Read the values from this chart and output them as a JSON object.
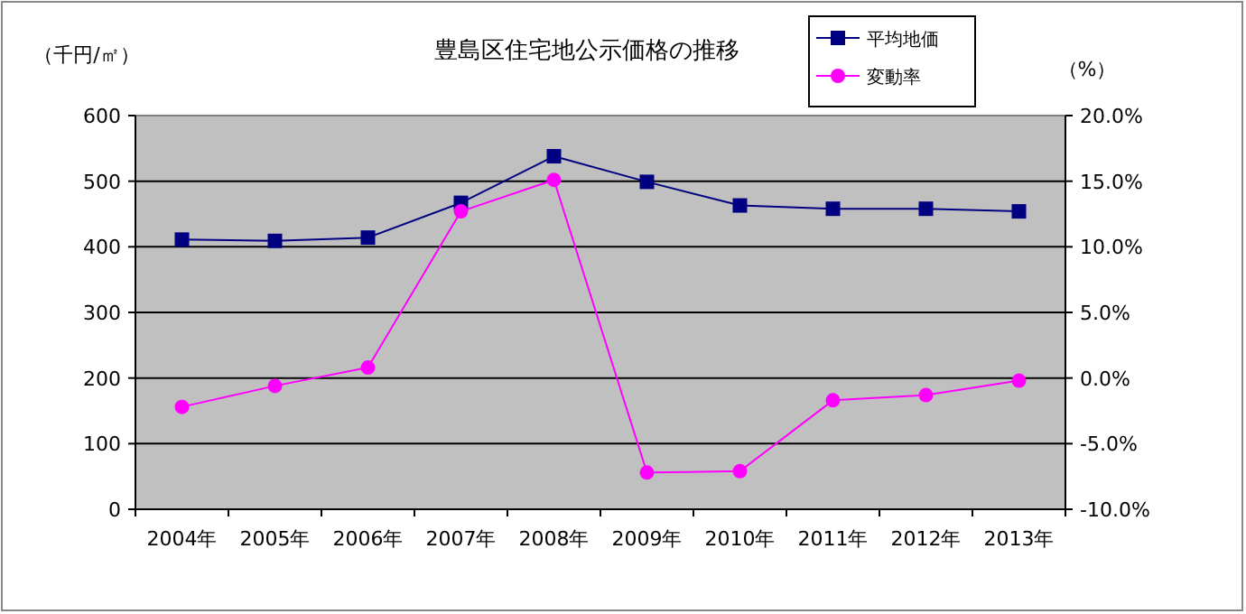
{
  "chart_data": {
    "type": "line",
    "title": "豊島区住宅地公示価格の推移",
    "ylabel": "（千円/㎡）",
    "y2label": "（%）",
    "categories": [
      "2004年",
      "2005年",
      "2006年",
      "2007年",
      "2008年",
      "2009年",
      "2010年",
      "2011年",
      "2012年",
      "2013年"
    ],
    "series": [
      {
        "name": "平均地価",
        "color": "#000080",
        "marker": "square",
        "values": [
          411,
          409,
          414,
          467,
          538,
          499,
          463,
          458,
          458,
          454
        ]
      },
      {
        "name": "変動率",
        "color": "#ff00ff",
        "marker": "circle",
        "axis": "y2",
        "values": [
          -2.2,
          -0.6,
          0.8,
          12.7,
          15.1,
          -7.2,
          -7.1,
          -1.7,
          -1.3,
          -0.2
        ]
      }
    ],
    "ylim": [
      0,
      600
    ],
    "yticks": [
      0,
      100,
      200,
      300,
      400,
      500,
      600
    ],
    "y2lim": [
      -10,
      20
    ],
    "y2ticks": [
      {
        "value": -10,
        "label": "-10.0%"
      },
      {
        "value": -5,
        "label": "-5.0%"
      },
      {
        "value": 0,
        "label": "0.0%"
      },
      {
        "value": 5,
        "label": "5.0%"
      },
      {
        "value": 10,
        "label": "10.0%"
      },
      {
        "value": 15,
        "label": "15.0%"
      },
      {
        "value": 20,
        "label": "20.0%"
      }
    ],
    "grid": "y",
    "legend": "top right"
  }
}
